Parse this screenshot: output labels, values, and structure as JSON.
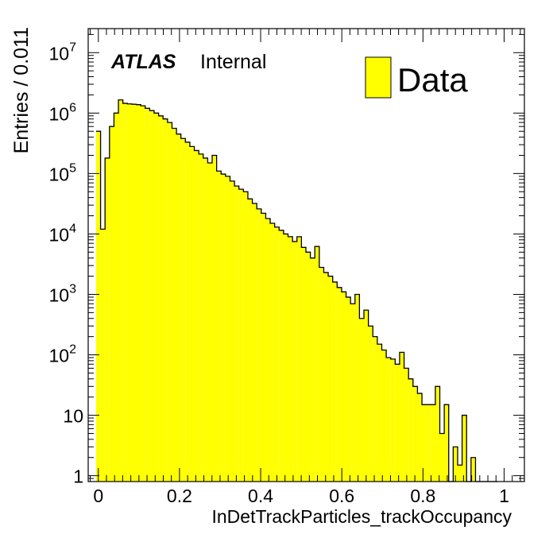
{
  "chart_data": {
    "type": "bar",
    "subtype": "histogram",
    "xlabel": "InDetTrackParticles_trackOccupancy",
    "ylabel": "Entries / 0.011",
    "xlim": [
      -0.025,
      1.05
    ],
    "ylim": [
      0.8,
      25000000
    ],
    "yscale": "log",
    "bin_width": 0.011,
    "x_first_bin_low": -0.0055,
    "x_ticks": [
      0,
      0.2,
      0.4,
      0.6,
      0.8,
      1
    ],
    "x_tick_labels": [
      "0",
      "0.2",
      "0.4",
      "0.6",
      "0.8",
      "1"
    ],
    "y_ticks": [
      {
        "value": 1,
        "base": "1",
        "exp": ""
      },
      {
        "value": 10,
        "base": "10",
        "exp": ""
      },
      {
        "value": 100,
        "base": "10",
        "exp": "2"
      },
      {
        "value": 1000,
        "base": "10",
        "exp": "3"
      },
      {
        "value": 10000,
        "base": "10",
        "exp": "4"
      },
      {
        "value": 100000,
        "base": "10",
        "exp": "5"
      },
      {
        "value": 1000000,
        "base": "10",
        "exp": "6"
      },
      {
        "value": 10000000,
        "base": "10",
        "exp": "7"
      }
    ],
    "atlas_label": "ATLAS",
    "atlas_status": "Internal",
    "legend": {
      "position": "top-right",
      "entry": "Data",
      "color": "#ffff00"
    },
    "fill_color": "#ffff00",
    "line_color": "#000000",
    "series": [
      {
        "name": "Data",
        "values": [
          500000,
          12000,
          180000,
          600000,
          1000000,
          1650000,
          1450000,
          1420000,
          1400000,
          1380000,
          1320000,
          1200000,
          1100000,
          1000000,
          900000,
          800000,
          700000,
          560000,
          450000,
          380000,
          330000,
          280000,
          240000,
          210000,
          180000,
          150000,
          200000,
          110000,
          98000,
          90000,
          75000,
          62000,
          55000,
          50000,
          38000,
          32000,
          26000,
          22000,
          18000,
          15000,
          13000,
          11500,
          10000,
          9000,
          7500,
          9000,
          6000,
          5000,
          4000,
          6200,
          2800,
          2300,
          2000,
          1600,
          1300,
          1100,
          900,
          700,
          1000,
          400,
          550,
          300,
          200,
          150,
          120,
          90,
          85,
          70,
          110,
          60,
          40,
          30,
          23,
          15,
          15,
          15,
          30,
          5,
          15,
          0,
          3,
          1.5,
          10,
          0,
          2,
          0,
          0,
          0,
          0,
          0
        ]
      }
    ]
  }
}
